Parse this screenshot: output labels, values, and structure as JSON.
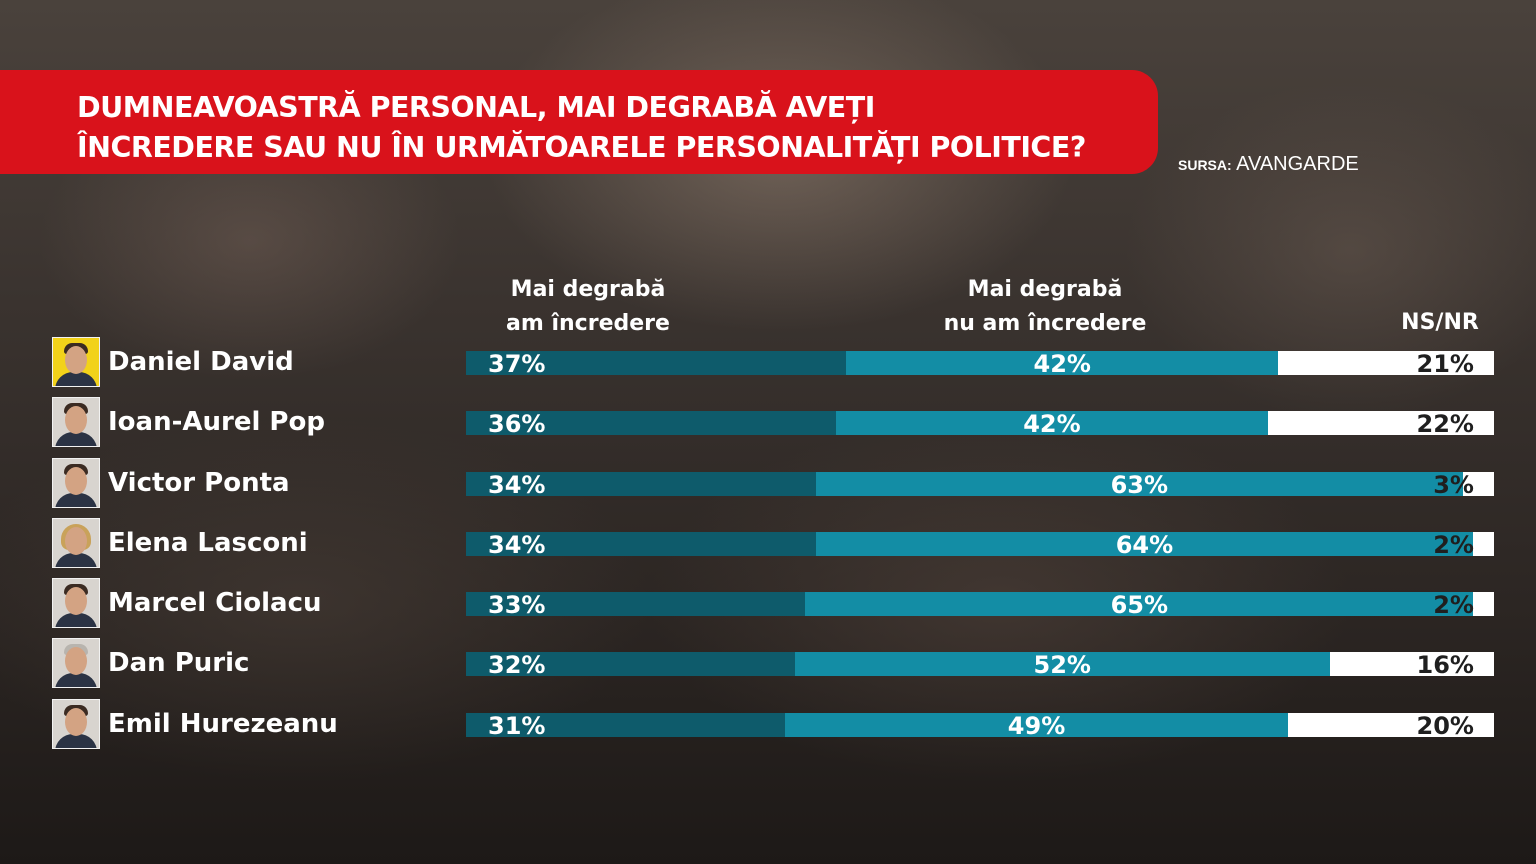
{
  "title_line1": "DUMNEAVOASTRĂ PERSONAL, MAI DEGRABĂ AVEȚI",
  "title_line2": "ÎNCREDERE SAU NU ÎN URMĂTOARELE PERSONALITĂȚI POLITICE?",
  "source_label": "SURSA:",
  "source_value": "AVANGARDE",
  "colors": {
    "banner": "#d9121b",
    "trust": "#0e5b6b",
    "distrust": "#138da5",
    "nsnr": "#ffffff"
  },
  "chart_data": {
    "type": "bar",
    "orientation": "horizontal",
    "stacked": true,
    "series": [
      {
        "name_line1": "Mai degrabă",
        "name_line2": "am încredere"
      },
      {
        "name_line1": "Mai degrabă",
        "name_line2": "nu am încredere"
      },
      {
        "name": "NS/NR"
      }
    ],
    "unit": "%",
    "rows": [
      {
        "name": "Daniel David",
        "avatar": "yellow",
        "values": [
          37,
          42,
          21
        ],
        "labels": [
          "37%",
          "42%",
          "21%"
        ]
      },
      {
        "name": "Ioan-Aurel Pop",
        "avatar": "grey",
        "values": [
          36,
          42,
          22
        ],
        "labels": [
          "36%",
          "42%",
          "22%"
        ]
      },
      {
        "name": "Victor Ponta",
        "avatar": "grey",
        "values": [
          34,
          63,
          3
        ],
        "labels": [
          "34%",
          "63%",
          "3%"
        ]
      },
      {
        "name": "Elena Lasconi",
        "avatar": "blonde",
        "values": [
          34,
          64,
          2
        ],
        "labels": [
          "34%",
          "64%",
          "2%"
        ]
      },
      {
        "name": "Marcel Ciolacu",
        "avatar": "grey",
        "values": [
          33,
          65,
          2
        ],
        "labels": [
          "33%",
          "65%",
          "2%"
        ]
      },
      {
        "name": "Dan Puric",
        "avatar": "grey",
        "values": [
          32,
          52,
          16
        ],
        "labels": [
          "32%",
          "52%",
          "16%"
        ]
      },
      {
        "name": "Emil Hurezeanu",
        "avatar": "grey",
        "values": [
          31,
          49,
          20
        ],
        "labels": [
          "31%",
          "49%",
          "20%"
        ]
      }
    ]
  }
}
